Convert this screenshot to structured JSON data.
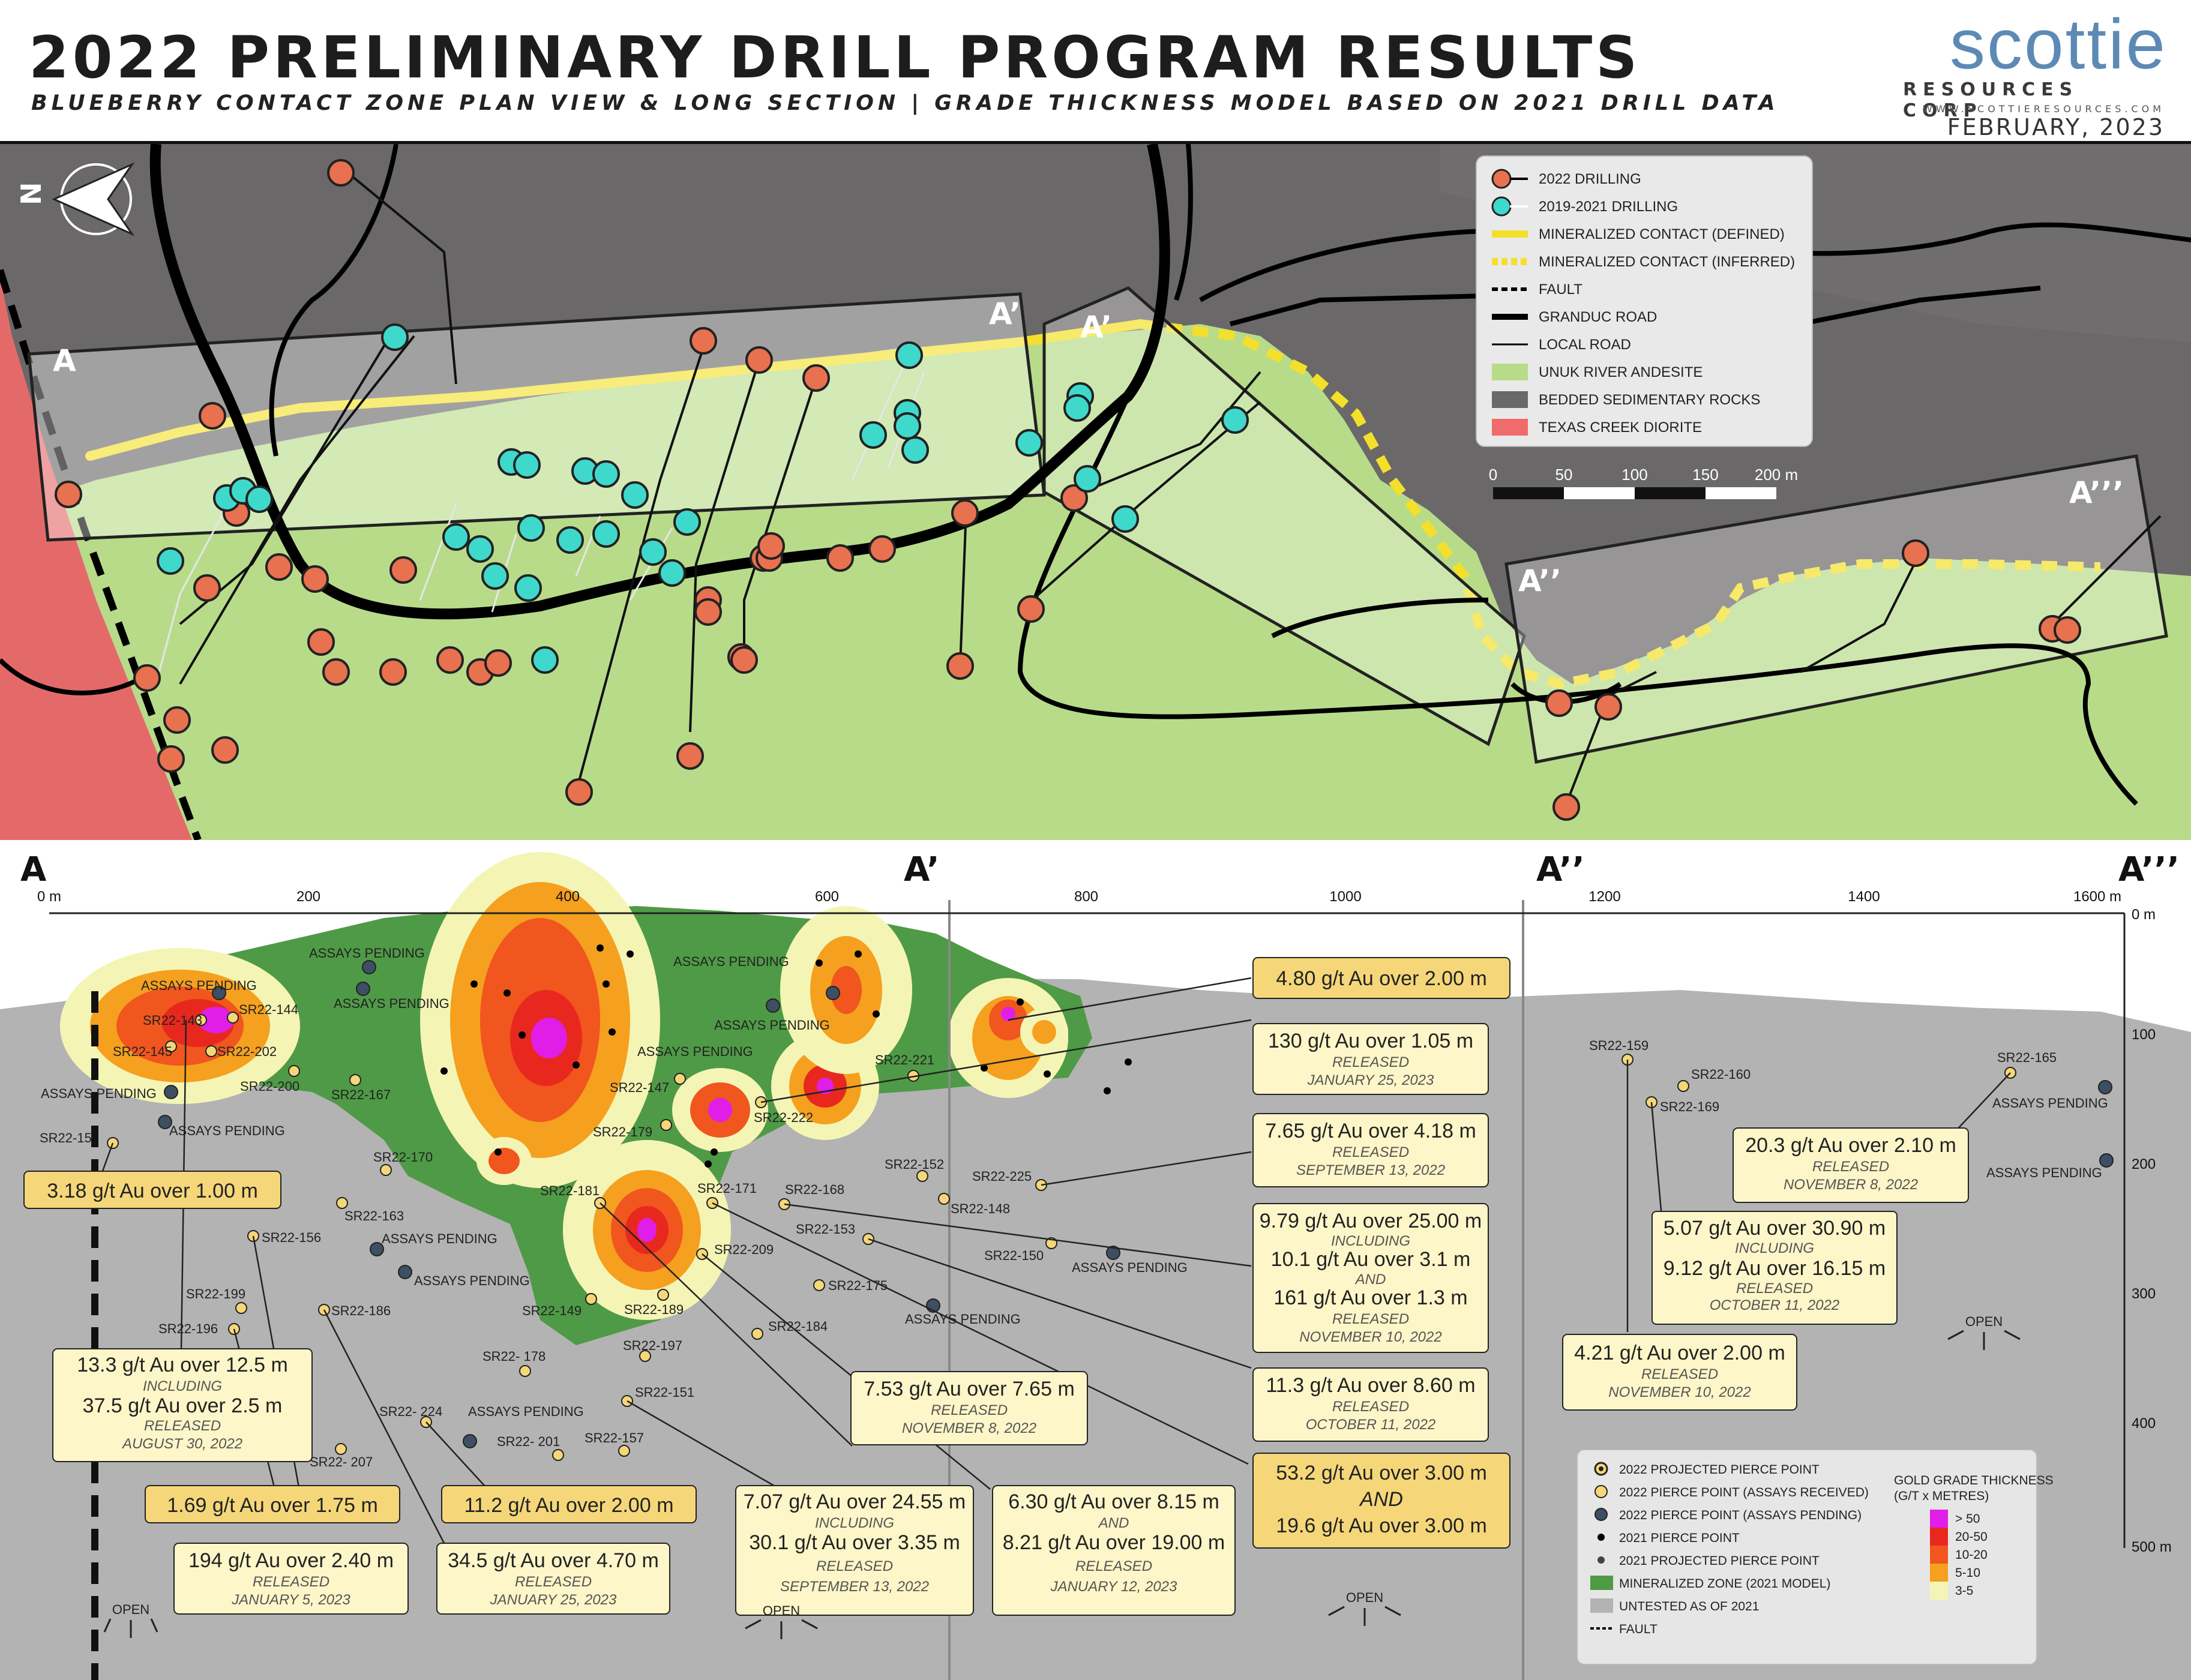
{
  "header": {
    "title": "2022 PRELIMINARY DRILL PROGRAM RESULTS",
    "subtitle": "BLUEBERRY CONTACT ZONE PLAN VIEW & LONG SECTION | GRADE THICKNESS MODEL BASED ON 2021 DRILL DATA"
  },
  "logo": {
    "word": "scottie",
    "corp": "RESOURCES CORP",
    "url": "WWW.SCOTTIERESOURCES.COM",
    "date": "FEBRUARY, 2023"
  },
  "plan_view": {
    "section_labels": [
      "A",
      "A’",
      "A’",
      "A’’",
      "A’’’"
    ],
    "north_label": "N",
    "legend": [
      {
        "label": "2022 DRILLING",
        "swatch": "#e8714f"
      },
      {
        "label": "2019-2021 DRILLING",
        "swatch": "#3fd9cc"
      },
      {
        "label": "MINERALIZED CONTACT (DEFINED)",
        "swatch": "#f4e02a"
      },
      {
        "label": "MINERALIZED CONTACT (INFERRED)",
        "swatch": "#f4e02a"
      },
      {
        "label": "FAULT",
        "swatch": "#000000"
      },
      {
        "label": "GRANDUC ROAD",
        "swatch": "#000000"
      },
      {
        "label": "LOCAL ROAD",
        "swatch": "#000000"
      },
      {
        "label": "UNUK RIVER ANDESITE",
        "swatch": "#b8db8a"
      },
      {
        "label": "BEDDED SEDIMENTARY ROCKS",
        "swatch": "#6a6868"
      },
      {
        "label": "TEXAS CREEK DIORITE",
        "swatch": "#f06b6b"
      }
    ],
    "scale": {
      "ticks": [
        "0",
        "50",
        "100",
        "150",
        "200 m"
      ]
    }
  },
  "long_section": {
    "section_labels": [
      "A",
      "A’",
      "A’’",
      "A’’’"
    ],
    "x_axis": {
      "ticks": [
        "0 m",
        "200",
        "400",
        "600",
        "800",
        "1000",
        "1200",
        "1400",
        "1600 m"
      ]
    },
    "depth_axis": {
      "ticks": [
        "0 m",
        "100",
        "200",
        "300",
        "400",
        "500 m"
      ]
    },
    "hole_labels": [
      "SR22-143",
      "SR22-144",
      "SR22-145",
      "SR22-202",
      "SR22-200",
      "SR22-15",
      "SR22-167",
      "SR22-170",
      "SR22-163",
      "SR22-156",
      "SR22-199",
      "SR22-196",
      "SR22-186",
      "SR22- 207",
      "SR22- 224",
      "SR22- 201",
      "SR22- 178",
      "SR22-149",
      "SR22-197",
      "SR22-151",
      "SR22-157",
      "SR22-181",
      "SR22-189",
      "SR22-171",
      "SR22-209",
      "SR22-184",
      "SR22-147",
      "SR22-179",
      "SR22-222",
      "SR22-221",
      "SR22-152",
      "SR22-148",
      "SR22-225",
      "SR22-168",
      "SR22-153",
      "SR22-175",
      "SR22-150",
      "SR22-159",
      "SR22-160",
      "SR22-169",
      "SR22-165"
    ],
    "assays_pending_label": "ASSAYS PENDING",
    "open_label": "OPEN",
    "results": [
      {
        "grade": "3.18 g/t Au over 1.00 m",
        "style": "gold"
      },
      {
        "grade": "13.3 g/t Au over 12.5 m",
        "incl_label": "INCLUDING",
        "incl": "37.5 g/t Au over 2.5 m",
        "status": "RELEASED",
        "date": "AUGUST 30, 2022",
        "style": "cream"
      },
      {
        "grade": "1.69 g/t Au over 1.75 m",
        "style": "gold"
      },
      {
        "grade": "194 g/t Au over 2.40 m",
        "status": "RELEASED",
        "date": "JANUARY 5, 2023",
        "style": "cream"
      },
      {
        "grade": "34.5 g/t Au over 4.70 m",
        "status": "RELEASED",
        "date": "JANUARY 25, 2023",
        "style": "cream"
      },
      {
        "grade": "11.2 g/t Au over 2.00 m",
        "style": "gold"
      },
      {
        "grade": "7.07 g/t Au over 24.55 m",
        "incl_label": "INCLUDING",
        "incl": "30.1 g/t Au over 3.35 m",
        "status": "RELEASED",
        "date": "SEPTEMBER 13, 2022",
        "style": "cream"
      },
      {
        "grade": "7.53 g/t Au over 7.65 m",
        "status": "RELEASED",
        "date": "NOVEMBER 8, 2022",
        "style": "cream"
      },
      {
        "grade": "6.30 g/t Au over 8.15 m",
        "incl_label": "AND",
        "incl": "8.21 g/t Au over 19.00 m",
        "status": "RELEASED",
        "date": "JANUARY 12, 2023",
        "style": "cream"
      },
      {
        "grade": "4.80 g/t Au over 2.00 m",
        "style": "gold"
      },
      {
        "grade": "130 g/t Au over 1.05 m",
        "status": "RELEASED",
        "date": "JANUARY 25, 2023",
        "style": "cream"
      },
      {
        "grade": "7.65 g/t Au over 4.18 m",
        "status": "RELEASED",
        "date": "SEPTEMBER 13, 2022",
        "style": "cream"
      },
      {
        "grade": "9.79 g/t Au over 25.00 m",
        "incl_label": "INCLUDING",
        "incl": "10.1 g/t Au over 3.1 m",
        "and_label": "AND",
        "and": "161 g/t Au over 1.3 m",
        "status": "RELEASED",
        "date": "NOVEMBER 10, 2022",
        "style": "cream"
      },
      {
        "grade": "11.3 g/t Au over 8.60 m",
        "status": "RELEASED",
        "date": "OCTOBER 11, 2022",
        "style": "cream"
      },
      {
        "grade": "53.2 g/t Au over 3.00 m",
        "incl_label": "AND",
        "incl": "19.6 g/t Au over 3.00 m",
        "style": "gold"
      },
      {
        "grade": "4.21 g/t Au over 2.00 m",
        "status": "RELEASED",
        "date": "NOVEMBER 10, 2022",
        "style": "cream"
      },
      {
        "grade": "5.07 g/t Au over 30.90 m",
        "incl_label": "INCLUDING",
        "incl": "9.12 g/t Au over 16.15 m",
        "status": "RELEASED",
        "date": "OCTOBER 11, 2022",
        "style": "cream"
      },
      {
        "grade": "20.3 g/t Au over 2.10 m",
        "status": "RELEASED",
        "date": "NOVEMBER 8, 2022",
        "style": "cream"
      }
    ],
    "legend": {
      "items": [
        "2022 PROJECTED PIERCE POINT",
        "2022 PIERCE POINT (ASSAYS RECEIVED)",
        "2022 PIERCE POINT (ASSAYS PENDING)",
        "2021 PIERCE POINT",
        "2021 PROJECTED PIERCE POINT",
        "MINERALIZED ZONE (2021 MODEL)",
        "UNTESTED AS OF 2021",
        "FAULT"
      ],
      "grade_title": "GOLD GRADE THICKNESS",
      "grade_subtitle": "(G/T x METRES)",
      "grade_classes": [
        {
          "label": "> 50",
          "color": "#e01ee8"
        },
        {
          "label": "20-50",
          "color": "#e8281e"
        },
        {
          "label": "10-20",
          "color": "#f0561e"
        },
        {
          "label": "5-10",
          "color": "#f5a01e"
        },
        {
          "label": "3-5",
          "color": "#f4f5b5"
        }
      ]
    }
  },
  "colors": {
    "andesite": "#b8db8a",
    "sediments": "#6a6868",
    "diorite": "#f06b6b",
    "drill_2022": "#e8714f",
    "drill_2019_2021": "#3fd9cc",
    "contact": "#f4e02a",
    "mineralized_zone": "#4f9a46",
    "untested": "#b3b3b3"
  }
}
